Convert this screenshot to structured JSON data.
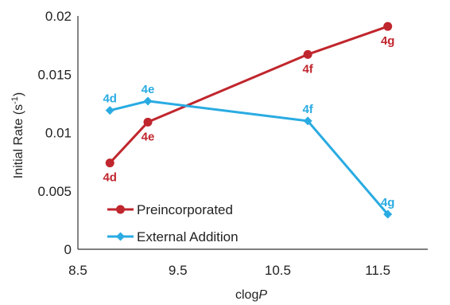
{
  "chart_data": {
    "type": "line",
    "xlabel": "clog",
    "xlabel_italic": "P",
    "ylabel": "Initial Rate (s",
    "ylabel_sup": "-1",
    "ylabel_close": ")",
    "xlim": [
      8.5,
      12.0
    ],
    "ylim": [
      0,
      0.02
    ],
    "x_ticks": [
      8.5,
      9.5,
      10.5,
      11.5
    ],
    "x_tick_labels": [
      "8.5",
      "9.5",
      "10.5",
      "11.5"
    ],
    "y_ticks": [
      0,
      0.005,
      0.01,
      0.015,
      0.02
    ],
    "y_tick_labels": [
      "0",
      "0.005",
      "0.01",
      "0.015",
      "0.02"
    ],
    "grid": false,
    "legend_position": "bottom-left",
    "series": [
      {
        "name": "Preincorporated",
        "color": "#c0262d",
        "marker": "circle",
        "x": [
          8.82,
          9.2,
          10.8,
          11.6
        ],
        "y": [
          0.0074,
          0.0109,
          0.0167,
          0.0191
        ],
        "labels": [
          "4d",
          "4e",
          "4f",
          "4g"
        ],
        "label_position": [
          "below",
          "below",
          "below",
          "below"
        ]
      },
      {
        "name": "External Addition",
        "color": "#29abe2",
        "marker": "diamond",
        "x": [
          8.82,
          9.2,
          10.8,
          11.6
        ],
        "y": [
          0.0119,
          0.0127,
          0.011,
          0.003
        ],
        "labels": [
          "4d",
          "4e",
          "4f",
          "4g"
        ],
        "label_position": [
          "above",
          "above",
          "above",
          "above"
        ]
      }
    ]
  }
}
